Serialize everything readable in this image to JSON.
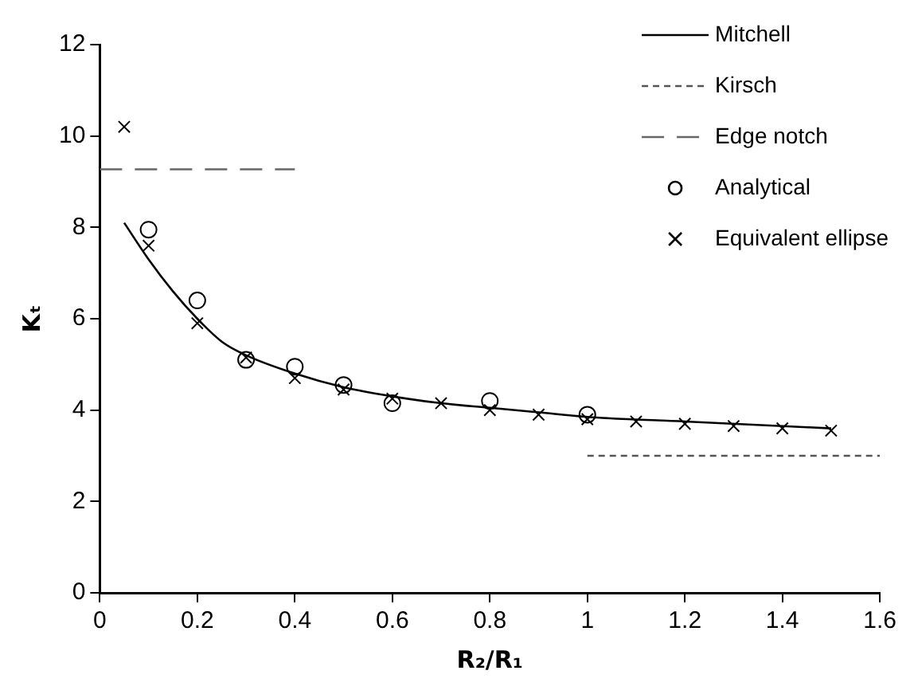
{
  "chart_data": {
    "type": "line",
    "xlabel": "R₂/R₁",
    "ylabel": "Kₜ",
    "xlim": [
      0,
      1.6
    ],
    "xticks": [
      0,
      0.2,
      0.4,
      0.6,
      0.8,
      1,
      1.2,
      1.4,
      1.6
    ],
    "ylim": [
      0,
      12
    ],
    "yticks": [
      0,
      2,
      4,
      6,
      8,
      10,
      12
    ],
    "grid": false,
    "legend": "top right",
    "series": [
      {
        "name": "Mitchell",
        "type": "line",
        "color": "#000000",
        "line_style": "solid",
        "marker": "none",
        "x": [
          0.05,
          0.1,
          0.15,
          0.2,
          0.25,
          0.3,
          0.4,
          0.5,
          0.6,
          0.7,
          0.8,
          0.9,
          1.0,
          1.2,
          1.4,
          1.5
        ],
        "values": [
          8.1,
          7.3,
          6.6,
          6.0,
          5.5,
          5.2,
          4.8,
          4.5,
          4.3,
          4.15,
          4.05,
          3.95,
          3.85,
          3.75,
          3.65,
          3.6
        ]
      },
      {
        "name": "Kirsch",
        "type": "line",
        "color": "#555555",
        "line_style": "dotted",
        "marker": "none",
        "x": [
          1,
          1.6
        ],
        "values": [
          3,
          3
        ]
      },
      {
        "name": "Edge notch",
        "type": "line",
        "color": "#666666",
        "line_style": "dashed",
        "marker": "none",
        "x": [
          0,
          0.4
        ],
        "values": [
          9.27,
          9.27
        ]
      },
      {
        "name": "Analytical",
        "type": "scatter",
        "color": "#000000",
        "marker": "circle",
        "x": [
          0.1,
          0.2,
          0.3,
          0.4,
          0.5,
          0.6,
          0.8,
          1.0
        ],
        "values": [
          7.95,
          6.4,
          5.1,
          4.95,
          4.55,
          4.15,
          4.2,
          3.9
        ]
      },
      {
        "name": "Equivalent ellipse",
        "type": "scatter",
        "color": "#000000",
        "marker": "cross",
        "x": [
          0.05,
          0.1,
          0.2,
          0.3,
          0.4,
          0.5,
          0.6,
          0.7,
          0.8,
          0.9,
          1.0,
          1.1,
          1.2,
          1.3,
          1.4,
          1.5
        ],
        "values": [
          10.2,
          7.6,
          5.9,
          5.15,
          4.7,
          4.45,
          4.25,
          4.15,
          4.0,
          3.9,
          3.8,
          3.75,
          3.7,
          3.65,
          3.6,
          3.55
        ]
      }
    ]
  }
}
